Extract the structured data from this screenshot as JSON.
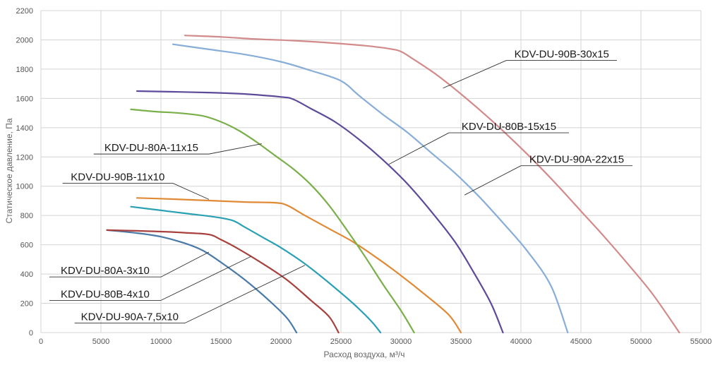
{
  "chart_data": {
    "type": "line",
    "xlabel": "Расход воздуха, м³/ч",
    "ylabel": "Статическое давление, Па",
    "xlim": [
      0,
      55000
    ],
    "ylim": [
      0,
      2200
    ],
    "x_ticks": [
      0,
      5000,
      10000,
      15000,
      20000,
      25000,
      30000,
      35000,
      40000,
      45000,
      50000,
      55000
    ],
    "y_ticks": [
      0,
      200,
      400,
      600,
      800,
      1000,
      1200,
      1400,
      1600,
      1800,
      2000,
      2200
    ],
    "grid": true,
    "legend": "callouts",
    "series": [
      {
        "name": "KDV-DU-90A-7,5x10",
        "color": "#4a7aa8",
        "points": [
          [
            5500,
            700
          ],
          [
            8000,
            680
          ],
          [
            10000,
            655
          ],
          [
            12000,
            610
          ],
          [
            13500,
            560
          ],
          [
            15000,
            480
          ],
          [
            17000,
            360
          ],
          [
            19000,
            220
          ],
          [
            20500,
            100
          ],
          [
            21300,
            0
          ]
        ]
      },
      {
        "name": "KDV-DU-80B-4x10",
        "color": "#a8413e",
        "points": [
          [
            5500,
            700
          ],
          [
            8000,
            695
          ],
          [
            10000,
            690
          ],
          [
            12000,
            682
          ],
          [
            14000,
            670
          ],
          [
            15000,
            635
          ],
          [
            16500,
            570
          ],
          [
            18500,
            470
          ],
          [
            20500,
            360
          ],
          [
            22500,
            220
          ],
          [
            24000,
            110
          ],
          [
            24800,
            0
          ]
        ]
      },
      {
        "name": "KDV-DU-80A-3x10",
        "color": "#2aa0b4",
        "points": [
          [
            7500,
            860
          ],
          [
            10000,
            835
          ],
          [
            12500,
            810
          ],
          [
            14500,
            790
          ],
          [
            16000,
            765
          ],
          [
            17000,
            720
          ],
          [
            18500,
            650
          ],
          [
            20000,
            580
          ],
          [
            22000,
            470
          ],
          [
            24000,
            340
          ],
          [
            26000,
            200
          ],
          [
            27500,
            80
          ],
          [
            28300,
            0
          ]
        ]
      },
      {
        "name": "KDV-DU-90B-11x10",
        "color": "#e08a35",
        "points": [
          [
            8000,
            920
          ],
          [
            11000,
            912
          ],
          [
            14000,
            902
          ],
          [
            17000,
            892
          ],
          [
            19500,
            887
          ],
          [
            20500,
            870
          ],
          [
            22000,
            800
          ],
          [
            24000,
            710
          ],
          [
            26000,
            620
          ],
          [
            28000,
            510
          ],
          [
            30000,
            390
          ],
          [
            32000,
            260
          ],
          [
            34000,
            120
          ],
          [
            35000,
            0
          ]
        ]
      },
      {
        "name": "KDV-DU-80A-11x15",
        "color": "#7aaf4a",
        "points": [
          [
            7500,
            1525
          ],
          [
            9500,
            1510
          ],
          [
            11500,
            1500
          ],
          [
            13500,
            1480
          ],
          [
            15000,
            1440
          ],
          [
            16500,
            1380
          ],
          [
            18000,
            1300
          ],
          [
            19500,
            1210
          ],
          [
            21000,
            1120
          ],
          [
            22500,
            1010
          ],
          [
            24000,
            870
          ],
          [
            25500,
            700
          ],
          [
            27000,
            520
          ],
          [
            28500,
            330
          ],
          [
            30000,
            150
          ],
          [
            31100,
            0
          ]
        ]
      },
      {
        "name": "KDV-DU-80B-15x15",
        "color": "#5e4a9a",
        "points": [
          [
            8000,
            1650
          ],
          [
            11000,
            1645
          ],
          [
            14000,
            1640
          ],
          [
            17000,
            1630
          ],
          [
            20000,
            1610
          ],
          [
            21000,
            1595
          ],
          [
            22500,
            1530
          ],
          [
            24500,
            1440
          ],
          [
            26500,
            1320
          ],
          [
            28500,
            1180
          ],
          [
            30500,
            1020
          ],
          [
            32500,
            830
          ],
          [
            34500,
            620
          ],
          [
            36000,
            420
          ],
          [
            37500,
            200
          ],
          [
            38500,
            0
          ]
        ]
      },
      {
        "name": "KDV-DU-90A-22x15",
        "color": "#88aed8",
        "points": [
          [
            11000,
            1970
          ],
          [
            14000,
            1935
          ],
          [
            17000,
            1900
          ],
          [
            20000,
            1850
          ],
          [
            22500,
            1790
          ],
          [
            25000,
            1720
          ],
          [
            26500,
            1620
          ],
          [
            28500,
            1490
          ],
          [
            30500,
            1370
          ],
          [
            32500,
            1230
          ],
          [
            34500,
            1090
          ],
          [
            36500,
            930
          ],
          [
            38500,
            750
          ],
          [
            40500,
            560
          ],
          [
            42500,
            320
          ],
          [
            43900,
            0
          ]
        ]
      },
      {
        "name": "KDV-DU-90B-30x15",
        "color": "#d28a8a",
        "points": [
          [
            12000,
            2030
          ],
          [
            15000,
            2020
          ],
          [
            18000,
            2005
          ],
          [
            21000,
            1995
          ],
          [
            24000,
            1980
          ],
          [
            27000,
            1960
          ],
          [
            29000,
            1940
          ],
          [
            30000,
            1920
          ],
          [
            31000,
            1870
          ],
          [
            33000,
            1760
          ],
          [
            35000,
            1630
          ],
          [
            37000,
            1490
          ],
          [
            39000,
            1340
          ],
          [
            41000,
            1180
          ],
          [
            43000,
            1010
          ],
          [
            45000,
            830
          ],
          [
            47000,
            650
          ],
          [
            49000,
            460
          ],
          [
            51000,
            260
          ],
          [
            53200,
            0
          ]
        ]
      }
    ],
    "annotations": [
      {
        "series": "KDV-DU-90B-30x15",
        "text": "KDV-DU-90B-30x15"
      },
      {
        "series": "KDV-DU-80B-15x15",
        "text": "KDV-DU-80B-15x15"
      },
      {
        "series": "KDV-DU-90A-22x15",
        "text": "KDV-DU-90A-22x15"
      },
      {
        "series": "KDV-DU-80A-11x15",
        "text": "KDV-DU-80A-11x15"
      },
      {
        "series": "KDV-DU-90B-11x10",
        "text": "KDV-DU-90B-11x10"
      },
      {
        "series": "KDV-DU-80A-3x10",
        "text": "KDV-DU-80A-3x10"
      },
      {
        "series": "KDV-DU-80B-4x10",
        "text": "KDV-DU-80B-4x10"
      },
      {
        "series": "KDV-DU-90A-7,5x10",
        "text": "KDV-DU-90A-7,5x10"
      }
    ]
  }
}
